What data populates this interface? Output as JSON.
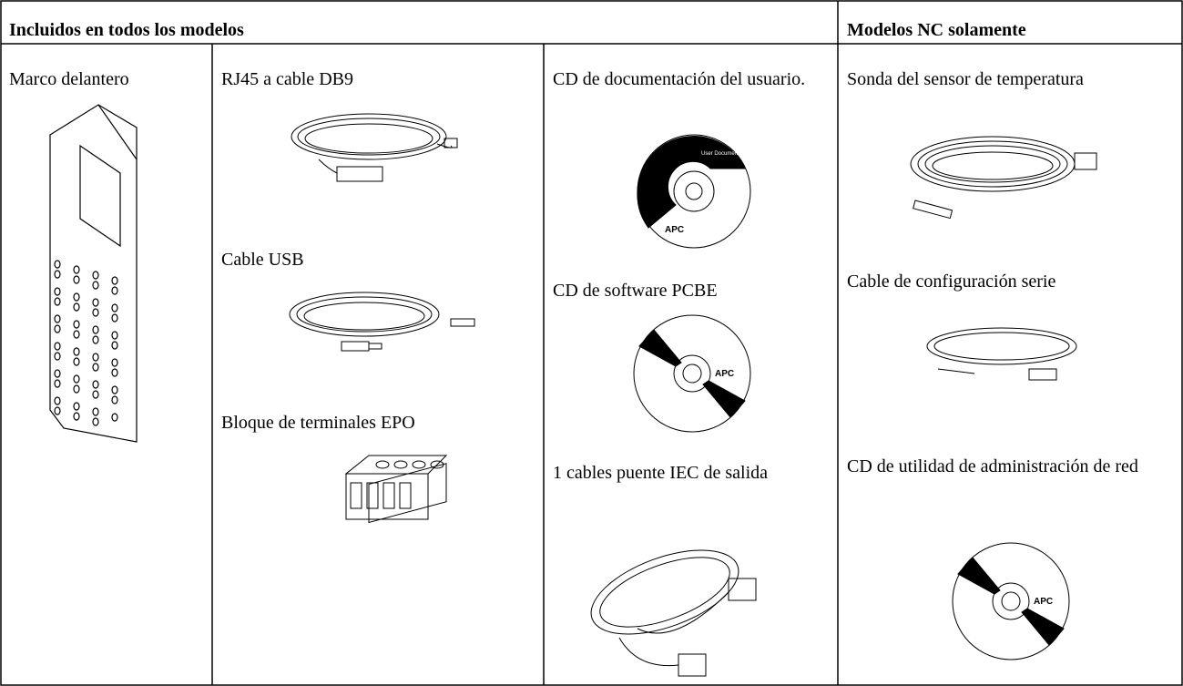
{
  "table": {
    "header": [
      "Incluidos en todos los modelos",
      "Modelos NC solamente"
    ],
    "columns": [
      [
        "Marco delantero"
      ],
      [
        "RJ45 a cable DB9",
        "Cable USB",
        "Bloque de terminales EPO"
      ],
      [
        "CD de documentación del usuario.",
        "CD de software PCBE",
        "1 cables puente IEC de salida"
      ],
      [
        "Sonda del sensor de temperatura",
        "Cable de configuración serie",
        "CD de utilidad de administración de red"
      ]
    ]
  },
  "images": {
    "logo": "APC",
    "cd_label": "User Documentation"
  }
}
